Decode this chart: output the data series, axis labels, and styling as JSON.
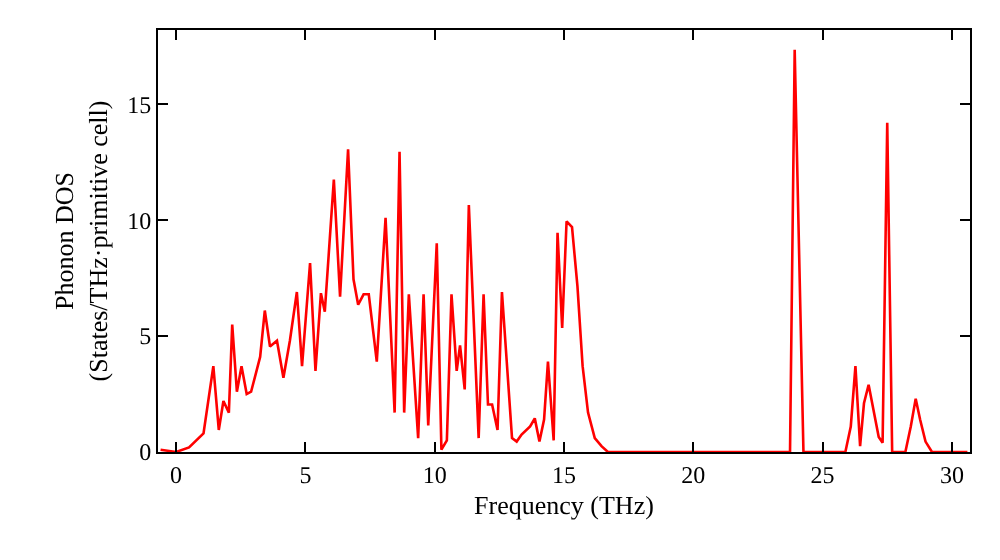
{
  "chart_data": {
    "type": "line",
    "xlabel": "Frequency (THz)",
    "ylabel": "Phonon DOS\n(States/THz·primitive cell)",
    "xlim": [
      -0.7,
      30.7
    ],
    "ylim": [
      0,
      18.2
    ],
    "xticks": [
      0,
      5,
      10,
      15,
      20,
      25,
      30
    ],
    "yticks": [
      0,
      5,
      10,
      15
    ],
    "marker": "none",
    "line_style": "solid",
    "series": [
      {
        "color": "#ff0000",
        "x": [
          -0.6,
          0,
          0.5,
          1.06,
          1.44,
          1.65,
          1.83,
          2.04,
          2.17,
          2.35,
          2.53,
          2.73,
          2.9,
          3.25,
          3.43,
          3.63,
          3.9,
          4.15,
          4.4,
          4.67,
          4.87,
          5.18,
          5.39,
          5.6,
          5.75,
          6.1,
          6.34,
          6.65,
          6.86,
          7.04,
          7.25,
          7.45,
          7.76,
          8.1,
          8.45,
          8.64,
          8.82,
          9.0,
          9.36,
          9.57,
          9.75,
          10.08,
          10.26,
          10.47,
          10.65,
          10.85,
          10.98,
          11.16,
          11.32,
          11.7,
          11.89,
          12.06,
          12.22,
          12.43,
          12.6,
          12.99,
          13.17,
          13.36,
          13.69,
          13.87,
          14.05,
          14.23,
          14.38,
          14.6,
          14.75,
          14.93,
          15.1,
          15.31,
          15.52,
          15.72,
          15.93,
          16.19,
          16.45,
          16.7,
          23.74,
          23.92,
          24.26,
          25.88,
          26.09,
          26.27,
          26.45,
          26.6,
          26.78,
          26.97,
          27.17,
          27.32,
          27.5,
          27.69,
          28.2,
          28.41,
          28.6,
          28.77,
          28.98,
          29.23,
          30.6
        ],
        "values": [
          0.1,
          0,
          0.2,
          0.8,
          3.7,
          0.95,
          2.2,
          1.7,
          5.5,
          2.6,
          3.7,
          2.5,
          2.6,
          4.1,
          6.1,
          4.55,
          4.8,
          3.2,
          4.8,
          6.9,
          3.7,
          8.15,
          3.5,
          6.85,
          6.05,
          11.75,
          6.7,
          13.05,
          7.45,
          6.35,
          6.8,
          6.8,
          3.9,
          10.1,
          1.7,
          12.95,
          1.7,
          6.8,
          0.6,
          6.8,
          1.15,
          9.0,
          0.1,
          0.5,
          6.8,
          3.5,
          4.6,
          2.7,
          10.65,
          0.6,
          6.8,
          2.05,
          2.05,
          0.95,
          6.9,
          0.6,
          0.45,
          0.75,
          1.1,
          1.45,
          0.45,
          1.4,
          3.9,
          0.5,
          9.45,
          5.35,
          9.95,
          9.7,
          7.15,
          3.7,
          1.7,
          0.6,
          0.25,
          0,
          0,
          17.35,
          0,
          0,
          1.1,
          3.7,
          0.25,
          2.1,
          2.9,
          1.8,
          0.65,
          0.4,
          14.2,
          0,
          0,
          1.1,
          2.3,
          1.4,
          0.45,
          0,
          0
        ]
      }
    ]
  }
}
